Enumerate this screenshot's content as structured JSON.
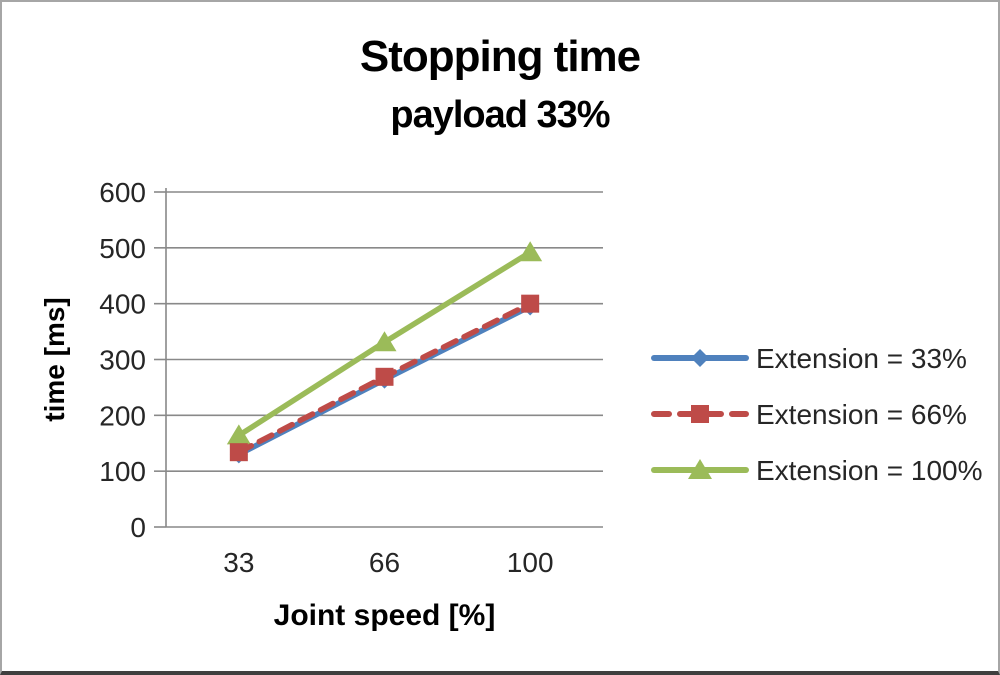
{
  "chart_data": {
    "type": "line",
    "title": "Stopping time",
    "subtitle": "payload 33%",
    "xlabel": "Joint speed [%]",
    "ylabel": "time [ms]",
    "categories": [
      "33",
      "66",
      "100"
    ],
    "ylim": [
      0,
      600
    ],
    "yticks": [
      0,
      100,
      200,
      300,
      400,
      500,
      600
    ],
    "grid": true,
    "legend_position": "right",
    "series": [
      {
        "name": "Extension = 33%",
        "values": [
          130,
          264,
          395
        ],
        "color": "#4F81BD",
        "marker": "diamond",
        "dashed": false
      },
      {
        "name": "Extension = 66%",
        "values": [
          134,
          269,
          400
        ],
        "color": "#BE4B48",
        "marker": "square",
        "dashed": true
      },
      {
        "name": "Extension = 100%",
        "values": [
          164,
          331,
          492
        ],
        "color": "#9BBB59",
        "marker": "triangle",
        "dashed": false
      }
    ],
    "colors": {
      "gridline": "#898989",
      "axis_line": "#898989",
      "tick_text": "#262626",
      "axis_title_text": "#000000",
      "legend_text": "#262626"
    }
  }
}
